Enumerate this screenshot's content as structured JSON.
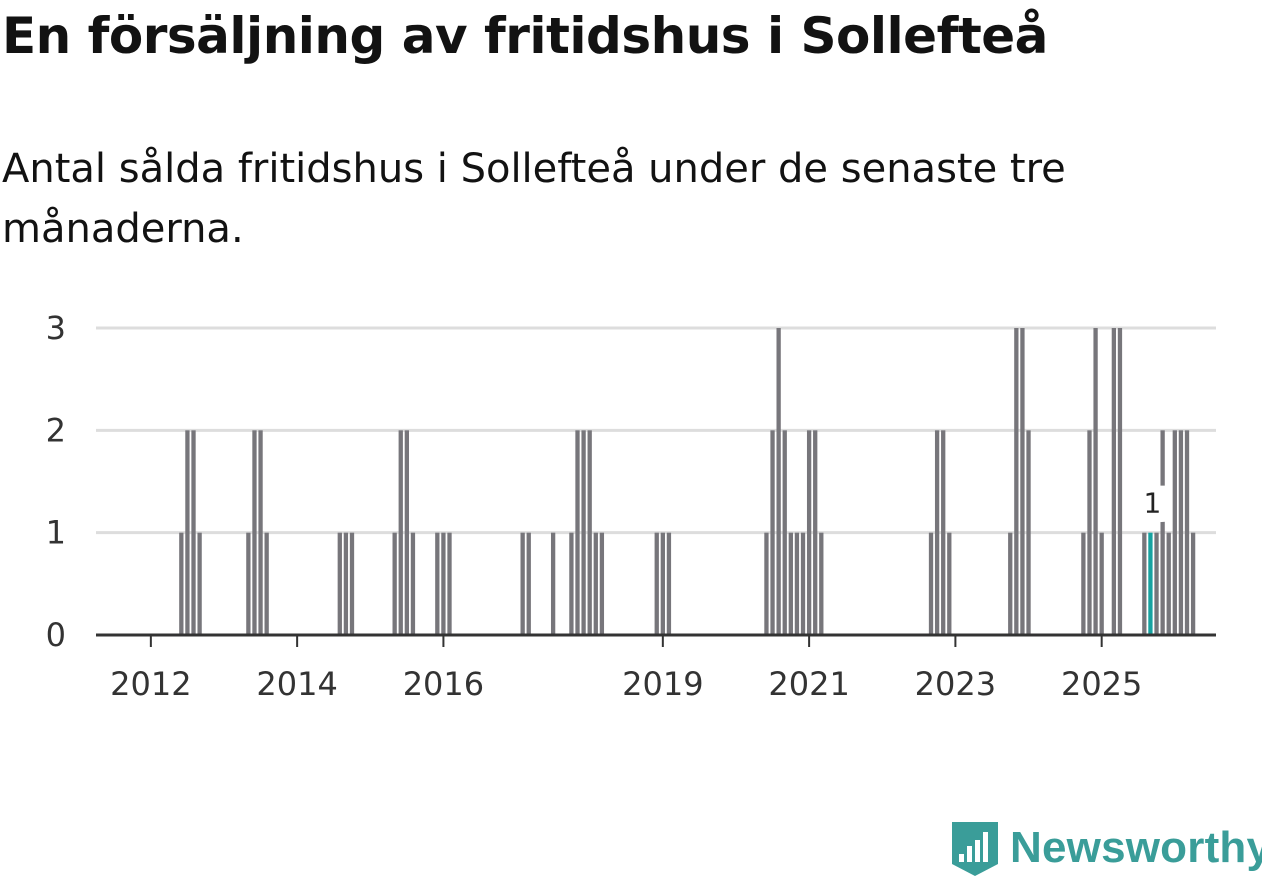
{
  "header": {
    "title": "En försäljning av fritidshus i Sollefteå",
    "subtitle": "Antal sålda fritidshus i Sollefteå under de senaste tre månaderna."
  },
  "brand": {
    "name": "Newsworthy",
    "logo_icon": "newsworthy-chart-icon"
  },
  "colors": {
    "bar": "#77767b",
    "highlight": "#17a2a0",
    "grid": "#dddddd",
    "axis": "#333333",
    "brand": "#3a9d99"
  },
  "chart_data": {
    "type": "bar",
    "title": "En försäljning av fritidshus i Sollefteå",
    "subtitle": "Antal sålda fritidshus i Sollefteå under de senaste tre månaderna.",
    "xlabel": "",
    "ylabel": "",
    "ylim": [
      0,
      3
    ],
    "yticks": [
      0,
      1,
      2,
      3
    ],
    "grid": true,
    "x_unit": "month",
    "x_start": "2011-04",
    "xticks": [
      "2012",
      "2014",
      "2016",
      "2019",
      "2021",
      "2023",
      "2025"
    ],
    "highlight": {
      "month": "2025-09",
      "value": 1,
      "label": "1"
    },
    "bars": [
      {
        "month": "2012-06",
        "value": 1
      },
      {
        "month": "2012-07",
        "value": 2
      },
      {
        "month": "2012-08",
        "value": 2
      },
      {
        "month": "2012-09",
        "value": 1
      },
      {
        "month": "2013-05",
        "value": 1
      },
      {
        "month": "2013-06",
        "value": 2
      },
      {
        "month": "2013-07",
        "value": 2
      },
      {
        "month": "2013-08",
        "value": 1
      },
      {
        "month": "2014-08",
        "value": 1
      },
      {
        "month": "2014-09",
        "value": 1
      },
      {
        "month": "2014-10",
        "value": 1
      },
      {
        "month": "2015-05",
        "value": 1
      },
      {
        "month": "2015-06",
        "value": 2
      },
      {
        "month": "2015-07",
        "value": 2
      },
      {
        "month": "2015-08",
        "value": 1
      },
      {
        "month": "2015-12",
        "value": 1
      },
      {
        "month": "2016-01",
        "value": 1
      },
      {
        "month": "2016-02",
        "value": 1
      },
      {
        "month": "2017-02",
        "value": 1
      },
      {
        "month": "2017-03",
        "value": 1
      },
      {
        "month": "2017-07",
        "value": 1
      },
      {
        "month": "2017-10",
        "value": 1
      },
      {
        "month": "2017-11",
        "value": 2
      },
      {
        "month": "2017-12",
        "value": 2
      },
      {
        "month": "2018-01",
        "value": 2
      },
      {
        "month": "2018-02",
        "value": 1
      },
      {
        "month": "2018-03",
        "value": 1
      },
      {
        "month": "2018-12",
        "value": 1
      },
      {
        "month": "2019-01",
        "value": 1
      },
      {
        "month": "2019-02",
        "value": 1
      },
      {
        "month": "2020-06",
        "value": 1
      },
      {
        "month": "2020-07",
        "value": 2
      },
      {
        "month": "2020-08",
        "value": 3
      },
      {
        "month": "2020-09",
        "value": 2
      },
      {
        "month": "2020-10",
        "value": 1
      },
      {
        "month": "2020-11",
        "value": 1
      },
      {
        "month": "2020-12",
        "value": 1
      },
      {
        "month": "2021-01",
        "value": 2
      },
      {
        "month": "2021-02",
        "value": 2
      },
      {
        "month": "2021-03",
        "value": 1
      },
      {
        "month": "2022-09",
        "value": 1
      },
      {
        "month": "2022-10",
        "value": 2
      },
      {
        "month": "2022-11",
        "value": 2
      },
      {
        "month": "2022-12",
        "value": 1
      },
      {
        "month": "2023-10",
        "value": 1
      },
      {
        "month": "2023-11",
        "value": 3
      },
      {
        "month": "2023-12",
        "value": 3
      },
      {
        "month": "2024-01",
        "value": 2
      },
      {
        "month": "2024-10",
        "value": 1
      },
      {
        "month": "2024-11",
        "value": 2
      },
      {
        "month": "2024-12",
        "value": 3
      },
      {
        "month": "2025-01",
        "value": 1
      },
      {
        "month": "2025-03",
        "value": 3
      },
      {
        "month": "2025-04",
        "value": 3
      },
      {
        "month": "2025-08",
        "value": 1
      },
      {
        "month": "2025-09",
        "value": 1
      },
      {
        "month": "2025-10",
        "value": 1
      },
      {
        "month": "2025-11",
        "value": 2
      },
      {
        "month": "2025-12",
        "value": 1
      },
      {
        "month": "2026-01",
        "value": 2
      },
      {
        "month": "2026-02",
        "value": 2
      },
      {
        "month": "2026-03",
        "value": 2
      },
      {
        "month": "2026-04",
        "value": 1
      }
    ]
  }
}
